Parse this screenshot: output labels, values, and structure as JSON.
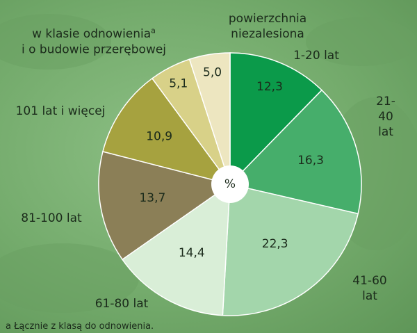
{
  "chart_data": {
    "type": "pie",
    "categories": [
      "1-20 lat",
      "21-40 lat",
      "41-60 lat",
      "61-80 lat",
      "81-100 lat",
      "101 lat i więcej",
      {
        "lines": [
          "w klasie odnowienia",
          "i o budowie przerębowej"
        ],
        "note": "a"
      },
      "powierzchnia\nniezalesiona"
    ],
    "values": [
      12.3,
      16.3,
      22.3,
      14.4,
      13.7,
      10.9,
      5.1,
      5.0
    ],
    "value_labels": [
      "12,3",
      "16,3",
      "22,3",
      "14,4",
      "13,7",
      "10,9",
      "5,1",
      "5,0"
    ],
    "colors": [
      "#0b9a4a",
      "#46ae6b",
      "#a3d6ab",
      "#d9eed7",
      "#8b7f57",
      "#a6a23f",
      "#d8d188",
      "#ede6c0"
    ],
    "center_label": "%",
    "footnote": "a Łącznie z klasą do odnowienia."
  }
}
